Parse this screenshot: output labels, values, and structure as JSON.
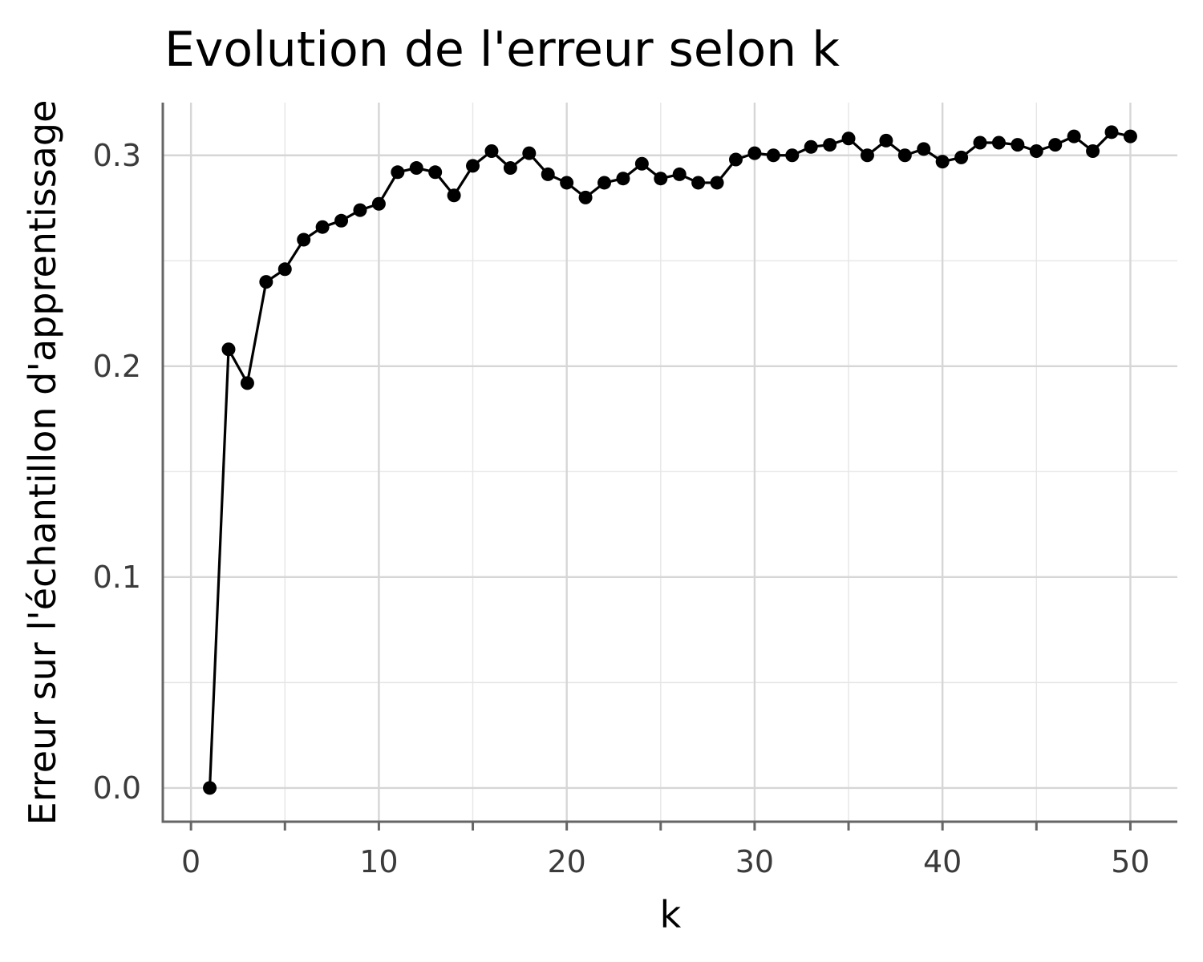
{
  "chart_data": {
    "type": "line",
    "title": "Evolution de l'erreur selon k",
    "xlabel": "k",
    "ylabel": "Erreur sur l'échantillon d'apprentissage",
    "xlim": [
      -1.5,
      52.5
    ],
    "ylim": [
      -0.016,
      0.325
    ],
    "x_ticks": [
      0,
      10,
      20,
      30,
      40,
      50
    ],
    "x_tick_labels": [
      "0",
      "10",
      "20",
      "30",
      "40",
      "50"
    ],
    "x_minor_ticks": [
      5,
      15,
      25,
      35,
      45
    ],
    "y_ticks": [
      0.0,
      0.1,
      0.2,
      0.3
    ],
    "y_tick_labels": [
      "0.0",
      "0.1",
      "0.2",
      "0.3"
    ],
    "y_minor_ticks": [
      0.05,
      0.15,
      0.25
    ],
    "grid": true,
    "series_color": "#000000",
    "series": [
      {
        "markers": true,
        "x": [
          1,
          2,
          3,
          4,
          5,
          6,
          7,
          8,
          9,
          10,
          11,
          12,
          13,
          14,
          15,
          16,
          17,
          18,
          19,
          20,
          21,
          22,
          23,
          24,
          25,
          26,
          27,
          28,
          29,
          30,
          31,
          32,
          33,
          34,
          35,
          36,
          37,
          38,
          39,
          40,
          41,
          42,
          43,
          44,
          45,
          46,
          47,
          48,
          49,
          50
        ],
        "y": [
          0.0,
          0.208,
          0.192,
          0.24,
          0.246,
          0.26,
          0.266,
          0.269,
          0.274,
          0.277,
          0.292,
          0.294,
          0.292,
          0.281,
          0.295,
          0.302,
          0.294,
          0.301,
          0.291,
          0.287,
          0.28,
          0.287,
          0.289,
          0.296,
          0.289,
          0.291,
          0.287,
          0.287,
          0.298,
          0.301,
          0.3,
          0.3,
          0.304,
          0.305,
          0.308,
          0.3,
          0.307,
          0.3,
          0.303,
          0.297,
          0.299,
          0.306,
          0.306,
          0.305,
          0.302,
          0.305,
          0.309,
          0.302,
          0.311,
          0.309
        ]
      }
    ]
  }
}
